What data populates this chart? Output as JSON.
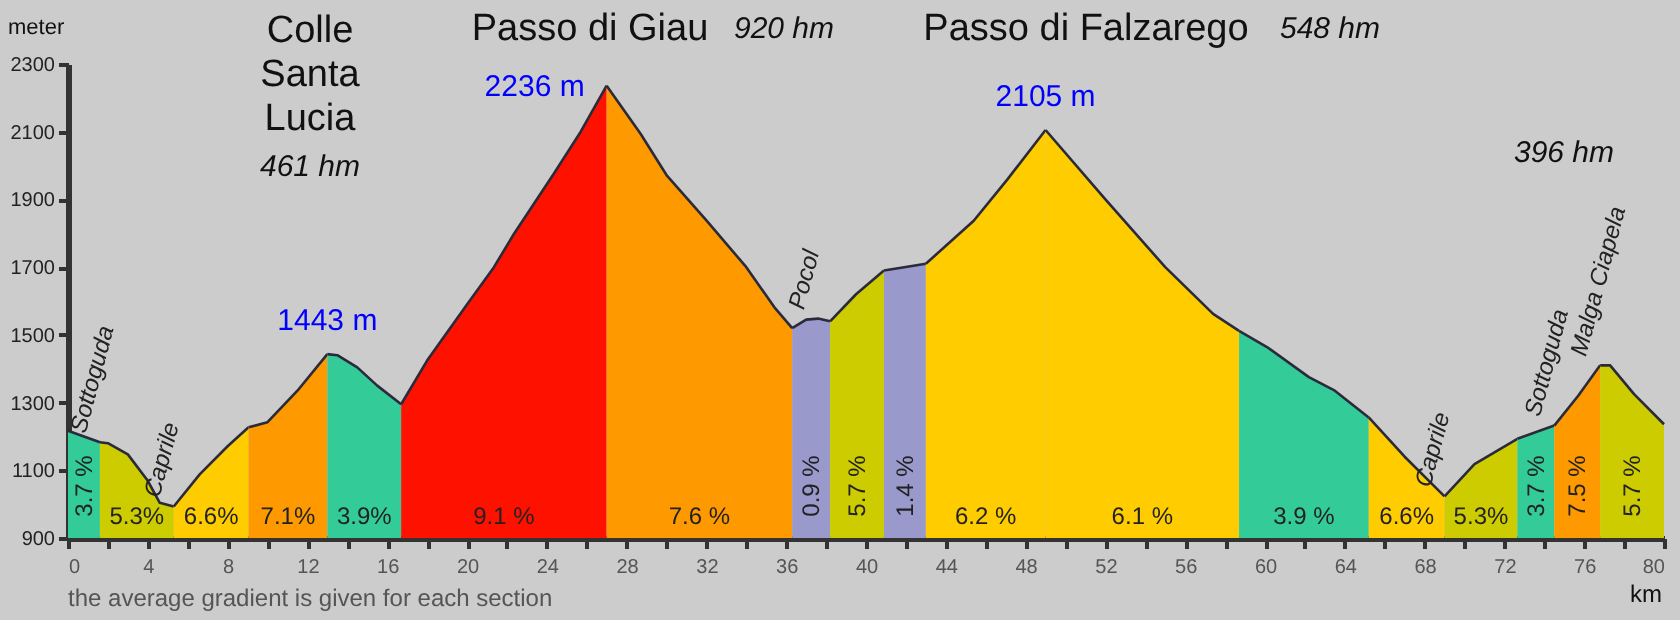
{
  "chart_data": {
    "type": "area",
    "ylabel": "meter",
    "xlabel": "km",
    "xlim": [
      0,
      80
    ],
    "ylim": [
      900,
      2300
    ],
    "xticks": [
      0,
      {
        "value": 2,
        "label": null
      },
      4,
      {
        "value": 6,
        "label": null
      },
      8,
      {
        "value": 10,
        "label": null
      },
      12,
      {
        "value": 14,
        "label": null
      },
      16,
      {
        "value": 18,
        "label": null
      },
      20,
      {
        "value": 22,
        "label": null
      },
      24,
      {
        "value": 26,
        "label": null
      },
      28,
      {
        "value": 30,
        "label": null
      },
      32,
      {
        "value": 34,
        "label": null
      },
      36,
      {
        "value": 38,
        "label": null
      },
      40,
      {
        "value": 42,
        "label": null
      },
      44,
      {
        "value": 46,
        "label": null
      },
      48,
      {
        "value": 50,
        "label": null
      },
      52,
      {
        "value": 54,
        "label": null
      },
      56,
      {
        "value": 58,
        "label": null
      },
      60,
      {
        "value": 62,
        "label": null
      },
      64,
      {
        "value": 66,
        "label": null
      },
      68,
      {
        "value": 70,
        "label": null
      },
      72,
      {
        "value": 74,
        "label": null
      },
      76,
      {
        "value": 78,
        "label": null
      },
      80
    ],
    "yticks": [
      900,
      1100,
      1300,
      1500,
      1700,
      1900,
      2100,
      2300
    ],
    "series": [
      {
        "color": "#33cc99",
        "x": [
          0,
          1.6
        ],
        "values": [
          1217,
          1183
        ]
      },
      {
        "color": "#cccc00",
        "x": [
          1.6,
          2,
          3,
          4,
          4.6,
          5.3
        ],
        "values": [
          1183,
          1180,
          1147,
          1069,
          1004,
          993
        ]
      },
      {
        "color": "#ffcc00",
        "x": [
          5.3,
          6.6,
          8,
          9.05
        ],
        "values": [
          993,
          1088,
          1171,
          1227
        ]
      },
      {
        "color": "#ff9900",
        "x": [
          9.05,
          10,
          11.5,
          13
        ],
        "values": [
          1227,
          1242,
          1335,
          1443
        ],
        "value_labels": [
          null,
          null,
          null,
          "1443 m"
        ]
      },
      {
        "color": "#33cc99",
        "x": [
          13,
          13.5,
          14.5,
          15.5,
          16.7
        ],
        "values": [
          1443,
          1440,
          1404,
          1350,
          1295
        ]
      },
      {
        "color": "#ff1100",
        "x": [
          16.7,
          18,
          20,
          21.35,
          22.35,
          24.35,
          25.7,
          27
        ],
        "values": [
          1295,
          1424,
          1590,
          1700,
          1798,
          1976,
          2100,
          2236
        ],
        "value_labels": [
          null,
          null,
          null,
          null,
          null,
          null,
          null,
          "2236 m"
        ]
      },
      {
        "color": "#ff9900",
        "x": [
          27,
          28.7,
          30,
          32,
          34,
          35.4,
          36.3
        ],
        "values": [
          2236,
          2094,
          1972,
          1838,
          1700,
          1582,
          1520
        ]
      },
      {
        "color": "#9999cc",
        "x": [
          36.3,
          37,
          37.6,
          38.2
        ],
        "values": [
          1520,
          1545,
          1548,
          1540
        ]
      },
      {
        "color": "#cccc00",
        "x": [
          38.2,
          39.5,
          40.9
        ],
        "values": [
          1540,
          1620,
          1690
        ]
      },
      {
        "color": "#9999cc",
        "x": [
          40.9,
          43
        ],
        "values": [
          1690,
          1710
        ]
      },
      {
        "color": "#ffcc00",
        "x": [
          43,
          45.4,
          47.1,
          49
        ],
        "values": [
          1710,
          1837,
          1960,
          2105
        ],
        "value_labels": [
          null,
          null,
          null,
          "2105 m"
        ]
      },
      {
        "color": "#ffcc00",
        "x": [
          49,
          52,
          55,
          57.4,
          58.7
        ],
        "values": [
          2105,
          1900,
          1700,
          1562,
          1512
        ]
      },
      {
        "color": "#33cc99",
        "x": [
          58.7,
          60.1,
          62.2,
          63.5,
          65.2
        ],
        "values": [
          1512,
          1464,
          1375,
          1335,
          1256
        ]
      },
      {
        "color": "#ffcc00",
        "x": [
          65.2,
          67,
          69
        ],
        "values": [
          1256,
          1140,
          1023
        ]
      },
      {
        "color": "#cccc00",
        "x": [
          69,
          70.5,
          72.65
        ],
        "values": [
          1023,
          1118,
          1193
        ]
      },
      {
        "color": "#33cc99",
        "x": [
          72.65,
          74.5
        ],
        "values": [
          1193,
          1232
        ]
      },
      {
        "color": "#ff9900",
        "x": [
          74.5,
          75.7,
          76.8
        ],
        "values": [
          1232,
          1320,
          1410
        ]
      },
      {
        "color": "#cccc00",
        "x": [
          76.8,
          77.3,
          78.5,
          80
        ],
        "values": [
          1410,
          1410,
          1325,
          1236
        ]
      }
    ],
    "annotations": [
      "Colle\nSanta\nLucia",
      "461 hm",
      "Passo di Giau",
      "920 hm",
      "Passo di Falzarego",
      "548 hm",
      "396 hm",
      {
        "text": "Sottoguda",
        "x": 1.6,
        "y": 1183
      },
      {
        "text": "Caprile",
        "x": 5.3,
        "y": 993
      },
      {
        "text": "Pocol",
        "x": 37.6,
        "y": 1548
      },
      {
        "text": "Caprile",
        "x": 69,
        "y": 1023
      },
      {
        "text": "Sottoguda",
        "x": 74.5,
        "y": 1232
      },
      {
        "text": "Malga Ciapela",
        "x": 76.8,
        "y": 1410
      },
      "3.7 %",
      "5.3%",
      "6.6%",
      "7.1%",
      "3.9%",
      "9.1 %",
      "7.6 %",
      "0.9 %",
      "5.7 %",
      "1.4 %",
      "6.2 %",
      "6.1 %",
      "3.9 %",
      "6.6%",
      "5.3%",
      "3.7 %",
      "7.5 %",
      "5.7 %",
      "the average gradient is given for each section"
    ]
  }
}
